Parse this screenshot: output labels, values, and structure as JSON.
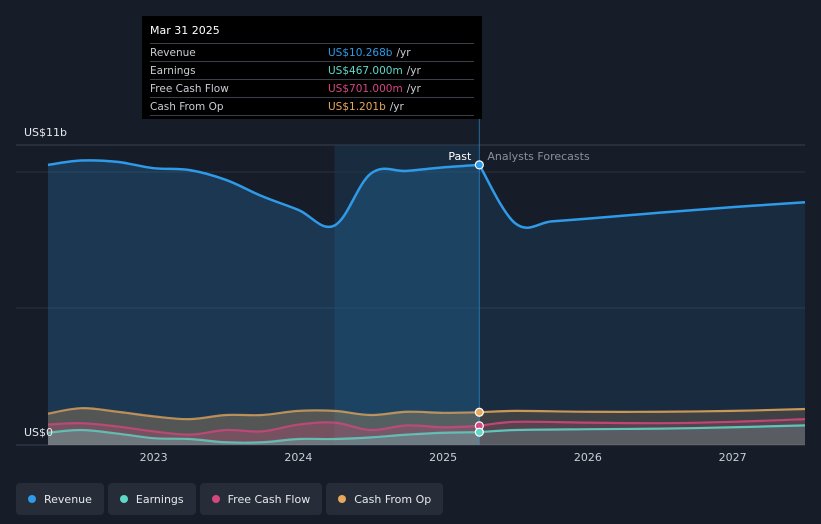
{
  "colors": {
    "revenue": "#2f9be8",
    "earnings": "#5fd8c8",
    "fcf": "#d4477f",
    "cfo": "#e6a85c"
  },
  "tooltip": {
    "date": "Mar 31 2025",
    "rows": [
      {
        "label": "Revenue",
        "value": "US$10.268b",
        "unit": "/yr"
      },
      {
        "label": "Earnings",
        "value": "US$467.000m",
        "unit": "/yr"
      },
      {
        "label": "Free Cash Flow",
        "value": "US$701.000m",
        "unit": "/yr"
      },
      {
        "label": "Cash From Op",
        "value": "US$1.201b",
        "unit": "/yr"
      }
    ]
  },
  "legend": [
    {
      "label": "Revenue",
      "color": "#2f9be8"
    },
    {
      "label": "Earnings",
      "color": "#5fd8c8"
    },
    {
      "label": "Free Cash Flow",
      "color": "#d4477f"
    },
    {
      "label": "Cash From Op",
      "color": "#e6a85c"
    }
  ],
  "chart_data": {
    "type": "area",
    "y_top_label": "US$11b",
    "y_bottom_label": "US$0",
    "ylim": [
      0,
      11
    ],
    "xlim": [
      2022.27,
      2027.5
    ],
    "x_ticks": [
      {
        "value": 2023,
        "label": "2023"
      },
      {
        "value": 2024,
        "label": "2024"
      },
      {
        "value": 2025,
        "label": "2025"
      },
      {
        "value": 2026,
        "label": "2026"
      },
      {
        "value": 2027,
        "label": "2027"
      }
    ],
    "past_label": "Past",
    "forecast_label": "Analysts Forecasts",
    "divider_x": 2025.25,
    "highlight_start_x": 2024.25,
    "series": [
      {
        "name": "Revenue",
        "key": "revenue",
        "past": [
          [
            2022.27,
            10.27
          ],
          [
            2022.5,
            10.43
          ],
          [
            2022.75,
            10.38
          ],
          [
            2023.0,
            10.15
          ],
          [
            2023.25,
            10.08
          ],
          [
            2023.5,
            9.72
          ],
          [
            2023.75,
            9.12
          ],
          [
            2024.0,
            8.62
          ],
          [
            2024.25,
            8.05
          ],
          [
            2024.5,
            9.95
          ],
          [
            2024.75,
            10.05
          ],
          [
            2025.0,
            10.18
          ],
          [
            2025.25,
            10.27
          ]
        ],
        "forecast": [
          [
            2025.25,
            10.27
          ],
          [
            2025.5,
            8.12
          ],
          [
            2025.75,
            8.2
          ],
          [
            2026.0,
            8.3
          ],
          [
            2026.5,
            8.52
          ],
          [
            2027.0,
            8.72
          ],
          [
            2027.5,
            8.9
          ]
        ]
      },
      {
        "name": "Cash From Op",
        "key": "cfo",
        "past": [
          [
            2022.27,
            1.15
          ],
          [
            2022.5,
            1.35
          ],
          [
            2022.75,
            1.22
          ],
          [
            2023.0,
            1.05
          ],
          [
            2023.25,
            0.95
          ],
          [
            2023.5,
            1.1
          ],
          [
            2023.75,
            1.1
          ],
          [
            2024.0,
            1.25
          ],
          [
            2024.25,
            1.25
          ],
          [
            2024.5,
            1.1
          ],
          [
            2024.75,
            1.22
          ],
          [
            2025.0,
            1.18
          ],
          [
            2025.25,
            1.2
          ]
        ],
        "forecast": [
          [
            2025.25,
            1.2
          ],
          [
            2025.5,
            1.25
          ],
          [
            2026.0,
            1.22
          ],
          [
            2026.5,
            1.22
          ],
          [
            2027.0,
            1.25
          ],
          [
            2027.5,
            1.32
          ]
        ]
      },
      {
        "name": "Free Cash Flow",
        "key": "fcf",
        "past": [
          [
            2022.27,
            0.75
          ],
          [
            2022.5,
            0.8
          ],
          [
            2022.75,
            0.68
          ],
          [
            2023.0,
            0.5
          ],
          [
            2023.25,
            0.38
          ],
          [
            2023.5,
            0.55
          ],
          [
            2023.75,
            0.5
          ],
          [
            2024.0,
            0.75
          ],
          [
            2024.25,
            0.82
          ],
          [
            2024.5,
            0.55
          ],
          [
            2024.75,
            0.72
          ],
          [
            2025.0,
            0.65
          ],
          [
            2025.25,
            0.7
          ]
        ],
        "forecast": [
          [
            2025.25,
            0.7
          ],
          [
            2025.5,
            0.85
          ],
          [
            2026.0,
            0.82
          ],
          [
            2026.5,
            0.8
          ],
          [
            2027.0,
            0.85
          ],
          [
            2027.5,
            0.95
          ]
        ]
      },
      {
        "name": "Earnings",
        "key": "earnings",
        "past": [
          [
            2022.27,
            0.45
          ],
          [
            2022.5,
            0.55
          ],
          [
            2022.75,
            0.42
          ],
          [
            2023.0,
            0.25
          ],
          [
            2023.25,
            0.22
          ],
          [
            2023.5,
            0.1
          ],
          [
            2023.75,
            0.1
          ],
          [
            2024.0,
            0.22
          ],
          [
            2024.25,
            0.22
          ],
          [
            2024.5,
            0.28
          ],
          [
            2024.75,
            0.38
          ],
          [
            2025.0,
            0.45
          ],
          [
            2025.25,
            0.47
          ]
        ],
        "forecast": [
          [
            2025.25,
            0.47
          ],
          [
            2025.5,
            0.55
          ],
          [
            2026.0,
            0.58
          ],
          [
            2026.5,
            0.6
          ],
          [
            2027.0,
            0.65
          ],
          [
            2027.5,
            0.72
          ]
        ]
      }
    ]
  }
}
